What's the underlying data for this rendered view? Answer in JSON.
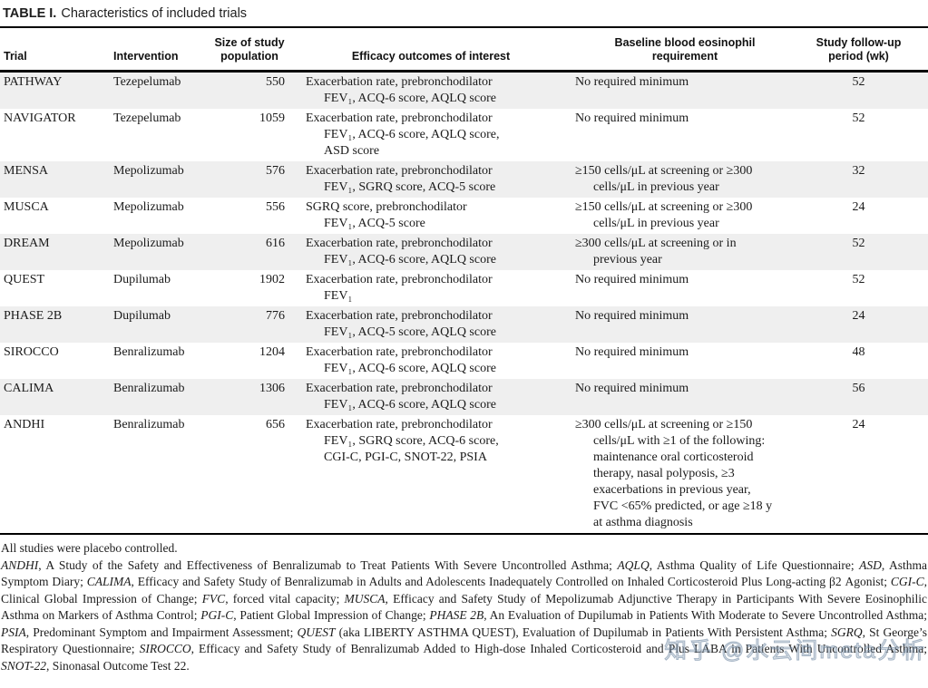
{
  "table": {
    "title_label": "TABLE I.",
    "title_text": "Characteristics of included trials",
    "headers": [
      {
        "key": "trial",
        "lines": [
          "Trial"
        ]
      },
      {
        "key": "intervention",
        "lines": [
          "Intervention"
        ]
      },
      {
        "key": "size-of-study-population",
        "lines": [
          "Size of study",
          "population"
        ]
      },
      {
        "key": "efficacy-outcomes-of-interest",
        "lines": [
          "Efficacy outcomes of interest"
        ]
      },
      {
        "key": "baseline-blood-eosinophil-requirement",
        "lines": [
          "Baseline blood eosinophil",
          "requirement"
        ]
      },
      {
        "key": "study-follow-up-period-wk",
        "lines": [
          "Study follow-up",
          "period (wk)"
        ]
      }
    ],
    "rows": [
      {
        "trial": "PATHWAY",
        "intervention": "Tezepelumab",
        "size": "550",
        "efficacy_lines": [
          "Exacerbation rate, prebronchodilator",
          "FEV₁, ACQ-6 score, AQLQ score"
        ],
        "eosinophil_lines": [
          "No required minimum"
        ],
        "followup": "52"
      },
      {
        "trial": "NAVIGATOR",
        "intervention": "Tezepelumab",
        "size": "1059",
        "efficacy_lines": [
          "Exacerbation rate, prebronchodilator",
          "FEV₁, ACQ-6 score, AQLQ score,",
          "ASD score"
        ],
        "eosinophil_lines": [
          "No required minimum"
        ],
        "followup": "52"
      },
      {
        "trial": "MENSA",
        "intervention": "Mepolizumab",
        "size": "576",
        "efficacy_lines": [
          "Exacerbation rate, prebronchodilator",
          "FEV₁, SGRQ score, ACQ-5 score"
        ],
        "eosinophil_lines": [
          "≥150 cells/μL at screening or ≥300",
          "cells/μL in previous year"
        ],
        "followup": "32"
      },
      {
        "trial": "MUSCA",
        "intervention": "Mepolizumab",
        "size": "556",
        "efficacy_lines": [
          "SGRQ score, prebronchodilator",
          "FEV₁, ACQ-5 score"
        ],
        "eosinophil_lines": [
          "≥150 cells/μL at screening or ≥300",
          "cells/μL in previous year"
        ],
        "followup": "24"
      },
      {
        "trial": "DREAM",
        "intervention": "Mepolizumab",
        "size": "616",
        "efficacy_lines": [
          "Exacerbation rate, prebronchodilator",
          "FEV₁, ACQ-6 score, AQLQ score"
        ],
        "eosinophil_lines": [
          "≥300 cells/μL at screening or in",
          "previous year"
        ],
        "followup": "52"
      },
      {
        "trial": "QUEST",
        "intervention": "Dupilumab",
        "size": "1902",
        "efficacy_lines": [
          "Exacerbation rate, prebronchodilator",
          "FEV₁"
        ],
        "eosinophil_lines": [
          "No required minimum"
        ],
        "followup": "52"
      },
      {
        "trial": "PHASE 2B",
        "intervention": "Dupilumab",
        "size": "776",
        "efficacy_lines": [
          "Exacerbation rate, prebronchodilator",
          "FEV₁, ACQ-5 score, AQLQ score"
        ],
        "eosinophil_lines": [
          "No required minimum"
        ],
        "followup": "24"
      },
      {
        "trial": "SIROCCO",
        "intervention": "Benralizumab",
        "size": "1204",
        "efficacy_lines": [
          "Exacerbation rate, prebronchodilator",
          "FEV₁, ACQ-6 score, AQLQ score"
        ],
        "eosinophil_lines": [
          "No required minimum"
        ],
        "followup": "48"
      },
      {
        "trial": "CALIMA",
        "intervention": "Benralizumab",
        "size": "1306",
        "efficacy_lines": [
          "Exacerbation rate, prebronchodilator",
          "FEV₁, ACQ-6 score, AQLQ score"
        ],
        "eosinophil_lines": [
          "No required minimum"
        ],
        "followup": "56"
      },
      {
        "trial": "ANDHI",
        "intervention": "Benralizumab",
        "size": "656",
        "efficacy_lines": [
          "Exacerbation rate, prebronchodilator",
          "FEV₁, SGRQ score, ACQ-6 score,",
          "CGI-C, PGI-C, SNOT-22, PSIA"
        ],
        "eosinophil_lines": [
          "≥300 cells/μL at screening or ≥150",
          "cells/μL with ≥1 of the following:",
          "maintenance oral corticosteroid",
          "therapy, nasal polyposis, ≥3",
          "exacerbations in previous year,",
          "FVC <65% predicted, or age ≥18 y",
          "at asthma diagnosis"
        ],
        "followup": "24"
      }
    ]
  },
  "footnotes": {
    "placebo": "All studies were placebo controlled.",
    "abbreviations": [
      {
        "text": "ANDHI",
        "italic": true
      },
      {
        "text": ", A Study of the Safety and Effectiveness of Benralizumab to Treat Patients With Severe Uncontrolled Asthma; ",
        "italic": false
      },
      {
        "text": "AQLQ",
        "italic": true
      },
      {
        "text": ", Asthma Quality of Life Questionnaire; ",
        "italic": false
      },
      {
        "text": "ASD",
        "italic": true
      },
      {
        "text": ", Asthma Symptom Diary; ",
        "italic": false
      },
      {
        "text": "CALIMA",
        "italic": true
      },
      {
        "text": ", Efficacy and Safety Study of Benralizumab in Adults and Adolescents Inadequately Controlled on Inhaled Corticosteroid Plus Long-acting β2 Agonist; ",
        "italic": false
      },
      {
        "text": "CGI-C",
        "italic": true
      },
      {
        "text": ", Clinical Global Impression of Change; ",
        "italic": false
      },
      {
        "text": "FVC",
        "italic": true
      },
      {
        "text": ", forced vital capacity; ",
        "italic": false
      },
      {
        "text": "MUSCA",
        "italic": true
      },
      {
        "text": ", Efficacy and Safety Study of Mepolizumab Adjunctive Therapy in Participants With Severe Eosinophilic Asthma on Markers of Asthma Control; ",
        "italic": false
      },
      {
        "text": "PGI-C",
        "italic": true
      },
      {
        "text": ", Patient Global Impression of Change; ",
        "italic": false
      },
      {
        "text": "PHASE 2B",
        "italic": true
      },
      {
        "text": ", An Evaluation of Dupilumab in Patients With Moderate to Severe Uncontrolled Asthma; ",
        "italic": false
      },
      {
        "text": "PSIA",
        "italic": true
      },
      {
        "text": ", Predominant Symptom and Impairment Assessment; ",
        "italic": false
      },
      {
        "text": "QUEST",
        "italic": true
      },
      {
        "text": " (aka LIBERTY ASTHMA QUEST), Evaluation of Dupilumab in Patients With Persistent Asthma; ",
        "italic": false
      },
      {
        "text": "SGRQ",
        "italic": true
      },
      {
        "text": ", St George’s Respiratory Questionnaire; ",
        "italic": false
      },
      {
        "text": "SIROCCO",
        "italic": true
      },
      {
        "text": ", Efficacy and Safety Study of Benralizumab Added to High-dose Inhaled Corticosteroid and Plus LABA in Patients With Uncontrolled Asthma; ",
        "italic": false
      },
      {
        "text": "SNOT-22",
        "italic": true
      },
      {
        "text": ", Sinonasal Outcome Test 22.",
        "italic": false
      }
    ]
  },
  "watermark": {
    "text": "知乎 @水云间meta分析"
  },
  "colors": {
    "row_stripe": "#efefef",
    "rule": "#000000",
    "text": "#1a1a1a",
    "watermark": "#8da2b5"
  }
}
